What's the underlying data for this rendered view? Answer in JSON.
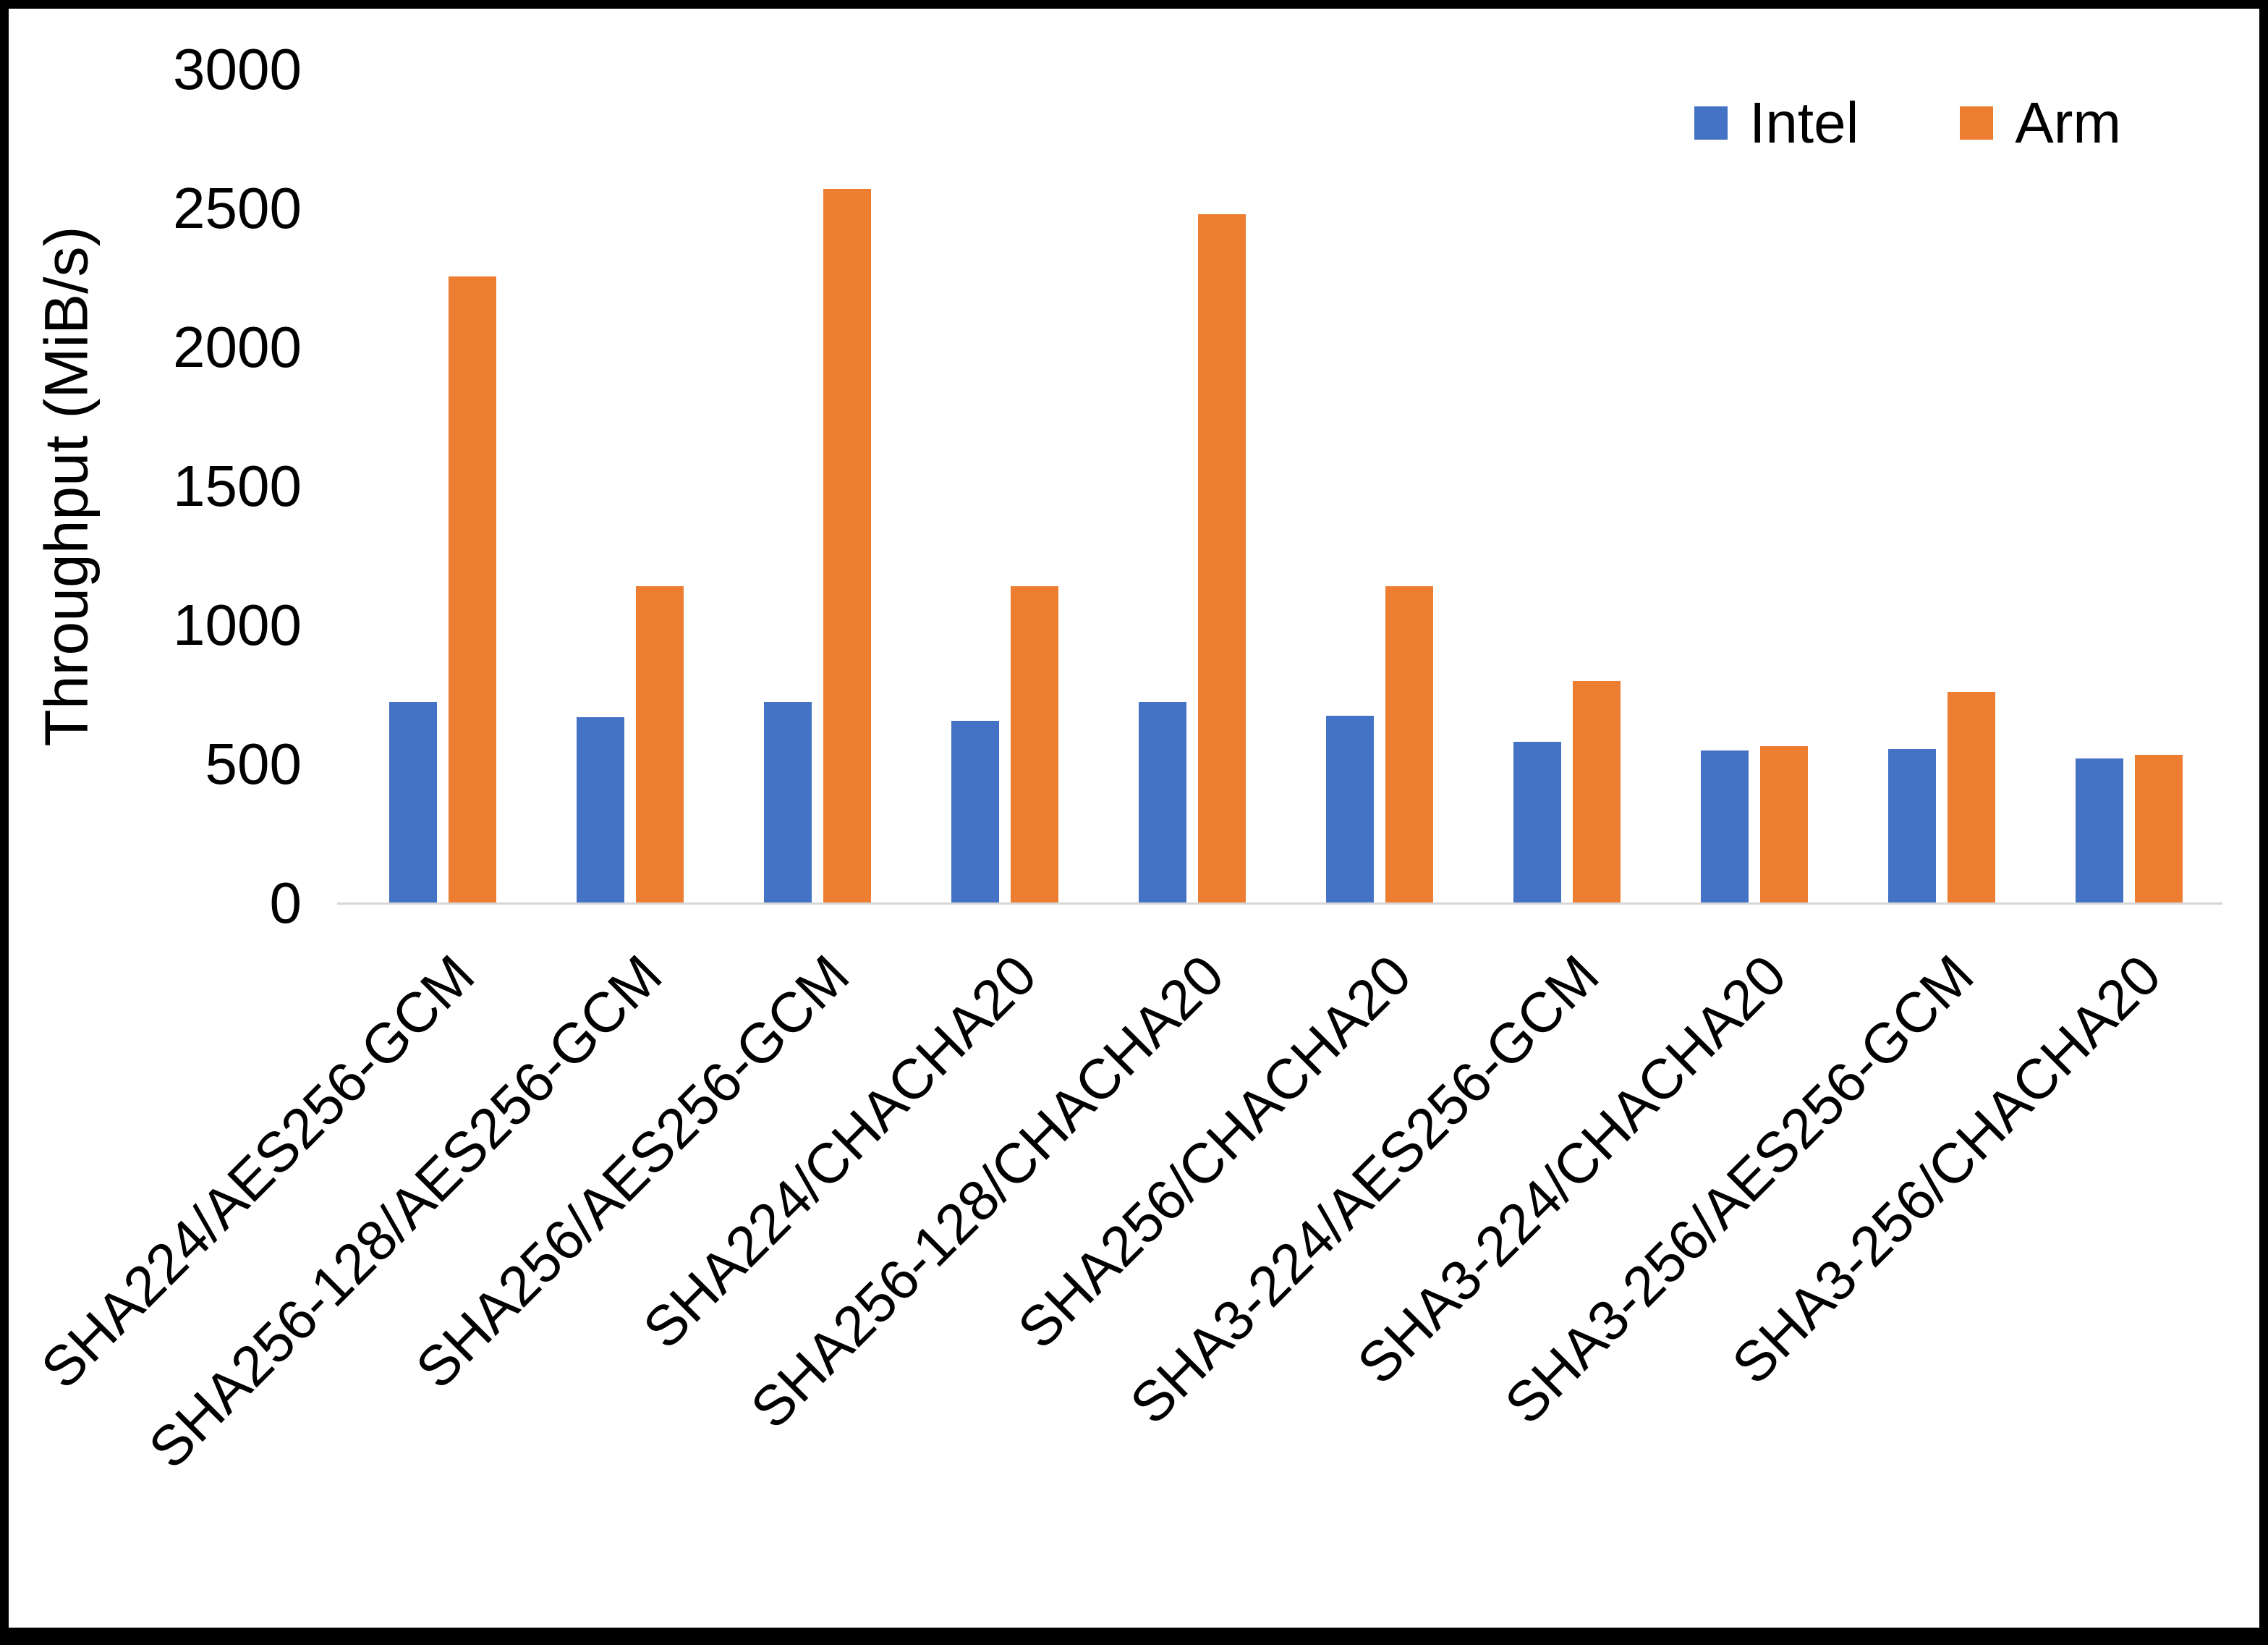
{
  "figure": {
    "background": "#ffffff",
    "frame_color": "#000000",
    "axis_line_color": "#d6d6d6"
  },
  "chart_data": {
    "type": "bar",
    "title": "",
    "xlabel": "",
    "ylabel": "Throughput (MiB/s)",
    "ylim": [
      0,
      3000
    ],
    "y_ticks": [
      0,
      500,
      1000,
      1500,
      2000,
      2500,
      3000
    ],
    "grid": false,
    "legend_position": "top-right",
    "categories": [
      "SHA224/AES256-GCM",
      "SHA256-128/AES256-GCM",
      "SHA256/AES256-GCM",
      "SHA224/CHACHA20",
      "SHA256-128/CHACHA20",
      "SHA256/CHACHA20",
      "SHA3-224/AES256-GCM",
      "SHA3-224/CHACHA20",
      "SHA3-256/AES256-GCM",
      "SHA3-256/CHACHA20"
    ],
    "series": [
      {
        "name": "Intel",
        "color": "#4472C4",
        "values": [
          725,
          670,
          725,
          655,
          725,
          675,
          580,
          550,
          555,
          520
        ]
      },
      {
        "name": "Arm",
        "color": "#ED7D31",
        "values": [
          2255,
          1140,
          2570,
          1140,
          2480,
          1140,
          800,
          565,
          760,
          535
        ]
      }
    ]
  }
}
